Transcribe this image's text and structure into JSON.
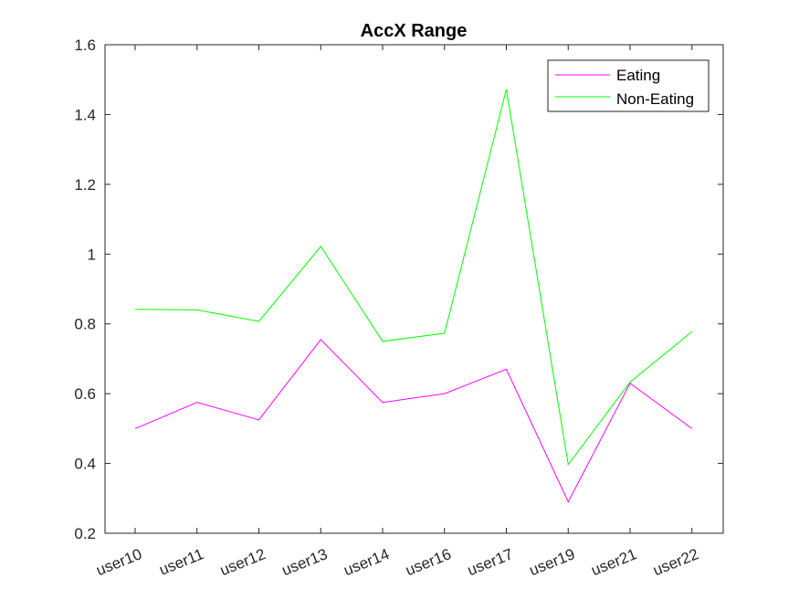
{
  "chart_data": {
    "type": "line",
    "title": "AccX Range",
    "xlabel": "",
    "ylabel": "",
    "categories": [
      "user10",
      "user11",
      "user12",
      "user13",
      "user14",
      "user16",
      "user17",
      "user19",
      "user21",
      "user22"
    ],
    "ylim": [
      0.2,
      1.6
    ],
    "yticks": [
      0.2,
      0.4,
      0.6,
      0.8,
      1,
      1.2,
      1.4,
      1.6
    ],
    "ytick_labels": [
      "0.2",
      "0.4",
      "0.6",
      "0.8",
      "1",
      "1.2",
      "1.4",
      "1.6"
    ],
    "grid": false,
    "legend_position": "top-right",
    "series": [
      {
        "name": "Eating",
        "color": "#ff00ff",
        "values": [
          0.5,
          0.575,
          0.525,
          0.755,
          0.575,
          0.6,
          0.67,
          0.29,
          0.63,
          0.5
        ]
      },
      {
        "name": "Non-Eating",
        "color": "#00ff00",
        "values": [
          0.842,
          0.84,
          0.807,
          1.022,
          0.75,
          0.773,
          1.472,
          0.397,
          0.633,
          0.778
        ]
      }
    ]
  }
}
